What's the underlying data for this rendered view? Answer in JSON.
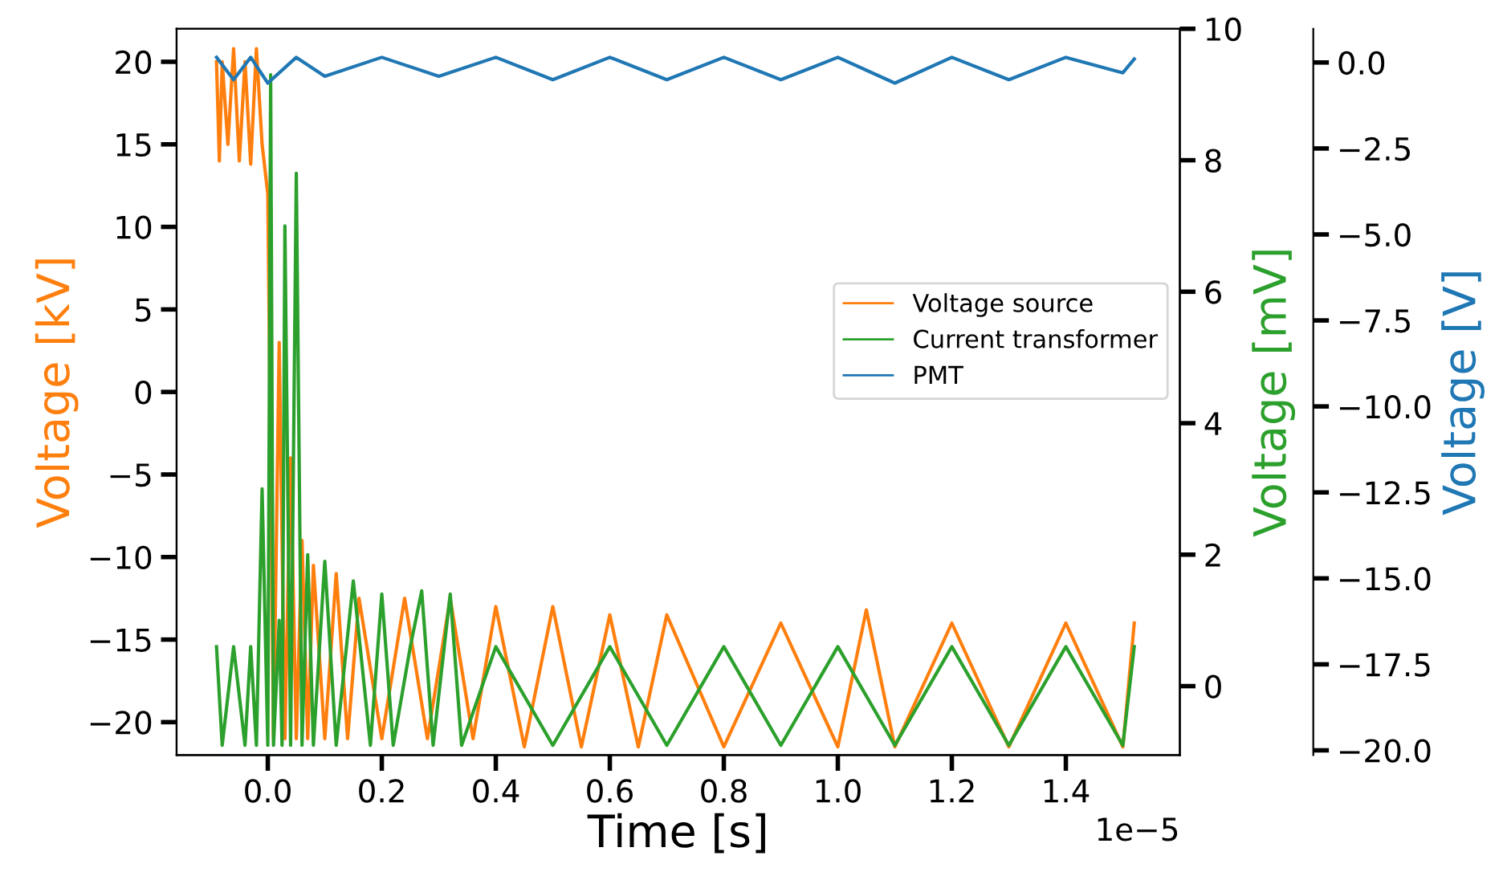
{
  "chart_data": {
    "type": "line",
    "xlabel": "Time [s]",
    "ylabel": "Voltage [kV]",
    "y2label": "Voltage [mV]",
    "y3label": "Voltage [V]",
    "annotations": [
      "1e−5"
    ],
    "legend": "right",
    "grid": false,
    "marker": "none",
    "line_style": "solid",
    "xlim": [
      -0.16,
      1.6
    ],
    "xticks": [
      {
        "value": 0.0,
        "label": "0.0"
      },
      0.2,
      0.4,
      0.6,
      0.8,
      {
        "value": 1.0,
        "label": "1.0"
      },
      1.2,
      1.4
    ],
    "ylim": [
      -22,
      22
    ],
    "yticks": [
      {
        "value": -20,
        "label": "−20"
      },
      {
        "value": -15,
        "label": "−15"
      },
      {
        "value": -10,
        "label": "−10"
      },
      {
        "value": -5,
        "label": "−5"
      },
      0,
      5,
      10,
      15,
      20
    ],
    "y2lim": [
      -1.05,
      10
    ],
    "y2ticks": [
      0,
      2,
      4,
      6,
      8,
      10
    ],
    "y3lim": [
      -20.14,
      0.98
    ],
    "y3ticks": [
      {
        "value": 0,
        "label": "0.0"
      },
      {
        "value": -2.5,
        "label": "−2.5"
      },
      {
        "value": -5,
        "label": "−5.0"
      },
      {
        "value": -7.5,
        "label": "−7.5"
      },
      {
        "value": -10,
        "label": "−10.0"
      },
      {
        "value": -12.5,
        "label": "−12.5"
      },
      {
        "value": -15,
        "label": "−15.0"
      },
      {
        "value": -17.5,
        "label": "−17.5"
      },
      {
        "value": -20,
        "label": "−20.0"
      }
    ],
    "series": [
      {
        "name": "Voltage source",
        "color": "#ff7f0e",
        "axis": "y",
        "x": [
          -0.09,
          -0.085,
          -0.08,
          -0.07,
          -0.06,
          -0.05,
          -0.04,
          -0.03,
          -0.02,
          -0.01,
          0.0,
          0.01,
          0.02,
          0.03,
          0.04,
          0.05,
          0.06,
          0.07,
          0.08,
          0.1,
          0.12,
          0.14,
          0.16,
          0.2,
          0.24,
          0.28,
          0.32,
          0.36,
          0.4,
          0.45,
          0.5,
          0.55,
          0.6,
          0.65,
          0.7,
          0.8,
          0.9,
          1.0,
          1.05,
          1.1,
          1.2,
          1.3,
          1.4,
          1.5,
          1.52
        ],
        "values": [
          20,
          14,
          20,
          15,
          20.8,
          14,
          20,
          13.8,
          20.8,
          15,
          12,
          -21,
          3,
          -21,
          -4,
          -21,
          -9,
          -21,
          -10.5,
          -21,
          -11,
          -21,
          -12.5,
          -21,
          -12.5,
          -21,
          -12.5,
          -21,
          -13,
          -21.5,
          -13,
          -21.5,
          -13.5,
          -21.5,
          -13.5,
          -21.5,
          -14,
          -21.5,
          -13.2,
          -21.5,
          -14,
          -21.5,
          -14,
          -21.5,
          -14
        ]
      },
      {
        "name": "Current transformer",
        "color": "#2ca02c",
        "axis": "y2",
        "x": [
          -0.09,
          -0.08,
          -0.06,
          -0.04,
          -0.03,
          -0.02,
          -0.01,
          0.0,
          0.005,
          0.01,
          0.02,
          0.025,
          0.03,
          0.04,
          0.05,
          0.06,
          0.07,
          0.08,
          0.1,
          0.12,
          0.15,
          0.18,
          0.2,
          0.22,
          0.25,
          0.27,
          0.29,
          0.32,
          0.34,
          0.4,
          0.5,
          0.6,
          0.7,
          0.8,
          0.9,
          1.0,
          1.1,
          1.2,
          1.3,
          1.4,
          1.5,
          1.52
        ],
        "values": [
          0.6,
          -0.9,
          0.6,
          -0.9,
          0.6,
          -0.9,
          3,
          -0.9,
          9.3,
          -0.9,
          1,
          -0.9,
          7,
          -0.9,
          7.8,
          -0.9,
          2,
          -0.9,
          1.9,
          -0.9,
          1.6,
          -0.9,
          1.4,
          -0.9,
          0.6,
          1.45,
          -0.9,
          1.4,
          -0.9,
          0.6,
          -0.9,
          0.6,
          -0.9,
          0.6,
          -0.9,
          0.6,
          -0.9,
          0.6,
          -0.9,
          0.6,
          -0.9,
          0.6
        ]
      },
      {
        "name": "PMT",
        "color": "#1f77b4",
        "axis": "y3",
        "x": [
          -0.09,
          -0.06,
          -0.03,
          0.0,
          0.05,
          0.1,
          0.2,
          0.3,
          0.4,
          0.5,
          0.6,
          0.7,
          0.8,
          0.9,
          1.0,
          1.1,
          1.2,
          1.3,
          1.4,
          1.5,
          1.52
        ],
        "values": [
          0.15,
          -0.5,
          0.15,
          -0.6,
          0.15,
          -0.4,
          0.15,
          -0.4,
          0.15,
          -0.5,
          0.15,
          -0.5,
          0.15,
          -0.5,
          0.15,
          -0.6,
          0.15,
          -0.5,
          0.15,
          -0.3,
          0.1
        ]
      }
    ]
  }
}
